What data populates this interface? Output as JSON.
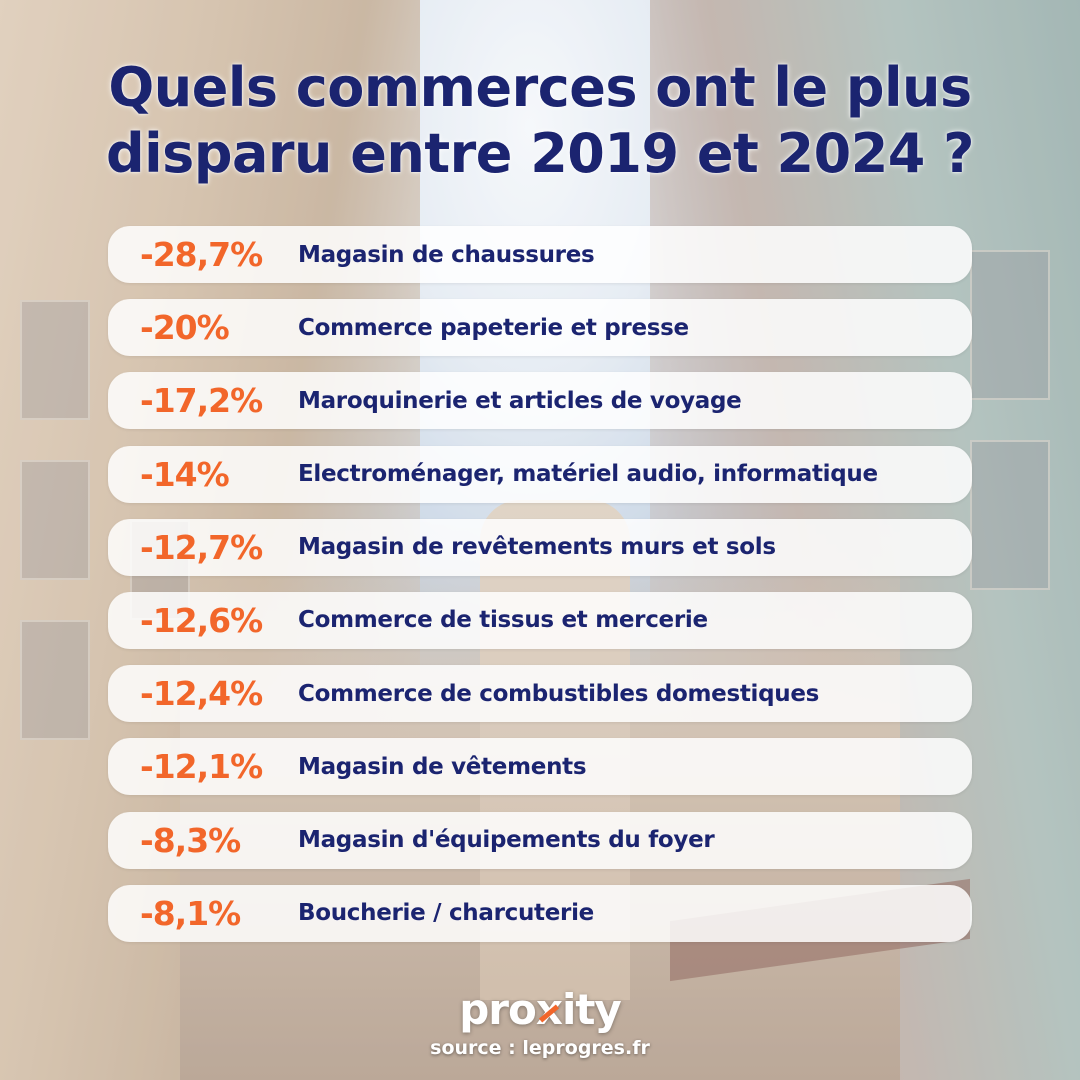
{
  "title": "Quels commerces ont le plus disparu entre 2019 et 2024 ?",
  "items": [
    {
      "value": "-28,7%",
      "label": "Magasin de chaussures"
    },
    {
      "value": "-20%",
      "label": "Commerce papeterie et presse"
    },
    {
      "value": "-17,2%",
      "label": "Maroquinerie et articles de voyage"
    },
    {
      "value": "-14%",
      "label": "Electroménager, matériel audio, informatique"
    },
    {
      "value": "-12,7%",
      "label": "Magasin de revêtements murs et sols"
    },
    {
      "value": "-12,6%",
      "label": "Commerce de tissus et mercerie"
    },
    {
      "value": "-12,4%",
      "label": "Commerce de combustibles domestiques"
    },
    {
      "value": "-12,1%",
      "label": "Magasin de vêtements"
    },
    {
      "value": "-8,3%",
      "label": "Magasin d'équipements du foyer"
    },
    {
      "value": "-8,1%",
      "label": "Boucherie / charcuterie"
    }
  ],
  "logo": {
    "pre": "pro",
    "x": "x",
    "post": "ity"
  },
  "source": "source : leprogres.fr",
  "colors": {
    "title": "#1b2470",
    "value": "#f2662a",
    "label": "#1b2470"
  }
}
